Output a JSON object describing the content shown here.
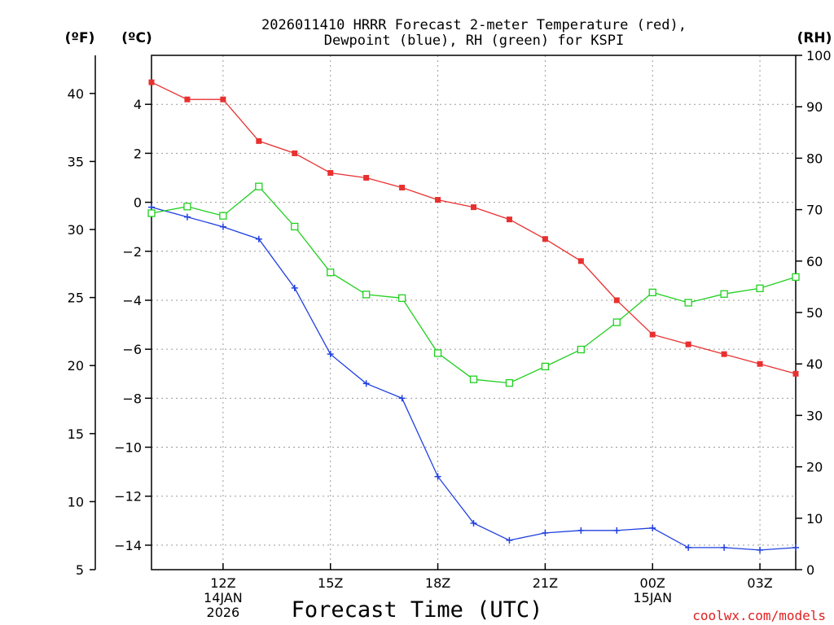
{
  "chart_data": {
    "type": "line",
    "title_lines": [
      "2026011410 HRRR Forecast 2-meter Temperature (red),",
      "Dewpoint (blue), RH (green) for KSPI"
    ],
    "units": {
      "left_f": "(ºF)",
      "left_c": "(ºC)",
      "right": "(RH)"
    },
    "xlabel": "Forecast Time (UTC)",
    "credit": "coolwx.com/models",
    "x_hours": [
      10,
      11,
      12,
      13,
      14,
      15,
      16,
      17,
      18,
      19,
      20,
      21,
      22,
      23,
      24,
      25,
      26,
      27,
      28
    ],
    "x_range": [
      10,
      28
    ],
    "x_ticks": [
      {
        "hour": 12,
        "lines": [
          "12Z",
          "14JAN",
          "2026"
        ]
      },
      {
        "hour": 15,
        "lines": [
          "15Z"
        ]
      },
      {
        "hour": 18,
        "lines": [
          "18Z"
        ]
      },
      {
        "hour": 21,
        "lines": [
          "21Z"
        ]
      },
      {
        "hour": 24,
        "lines": [
          "00Z",
          "15JAN"
        ]
      },
      {
        "hour": 27,
        "lines": [
          "03Z"
        ]
      }
    ],
    "axes": {
      "celsius": {
        "range": [
          -15.0,
          6.0
        ],
        "ticks": [
          4,
          2,
          0,
          -2,
          -4,
          -6,
          -8,
          -10,
          -12,
          -14
        ],
        "labels": [
          "4",
          "2",
          "0",
          "−2",
          "−4",
          "−6",
          "−8",
          "−10",
          "−12",
          "−14"
        ]
      },
      "fahrenheit": {
        "range": [
          5.0,
          42.8
        ],
        "ticks": [
          40,
          35,
          30,
          25,
          20,
          15,
          10,
          5
        ],
        "labels": [
          "40",
          "35",
          "30",
          "25",
          "20",
          "15",
          "10",
          "5"
        ]
      },
      "rh": {
        "range": [
          0,
          100
        ],
        "ticks": [
          100,
          90,
          80,
          70,
          60,
          50,
          40,
          30,
          20,
          10,
          0
        ],
        "labels": [
          "100",
          "90",
          "80",
          "70",
          "60",
          "50",
          "40",
          "30",
          "20",
          "10",
          "0"
        ]
      }
    },
    "grid": true,
    "series": [
      {
        "name": "2-meter Temperature",
        "axis": "celsius",
        "color": "#e83030",
        "marker": "filled-square",
        "values": [
          4.9,
          4.2,
          4.2,
          2.5,
          2.0,
          1.2,
          1.0,
          0.6,
          0.1,
          -0.2,
          -0.7,
          -1.5,
          -2.4,
          -4.0,
          -5.4,
          -5.8,
          -6.2,
          -6.6,
          -7.0
        ]
      },
      {
        "name": "Dewpoint",
        "axis": "celsius",
        "color": "#2040e0",
        "marker": "plus",
        "values": [
          -0.2,
          -0.6,
          -1.0,
          -1.5,
          -3.5,
          -6.2,
          -7.4,
          -8.0,
          -11.2,
          -13.1,
          -13.8,
          -13.5,
          -13.4,
          -13.4,
          -13.3,
          -14.1,
          -14.1,
          -14.2,
          -14.1
        ]
      },
      {
        "name": "RH",
        "axis": "rh",
        "color": "#20d020",
        "marker": "open-square",
        "values": [
          69.3,
          70.6,
          68.8,
          74.5,
          66.7,
          57.8,
          53.5,
          52.8,
          42.1,
          37.0,
          36.3,
          39.5,
          42.8,
          48.1,
          53.9,
          51.9,
          53.6,
          54.7,
          56.9
        ]
      }
    ]
  }
}
